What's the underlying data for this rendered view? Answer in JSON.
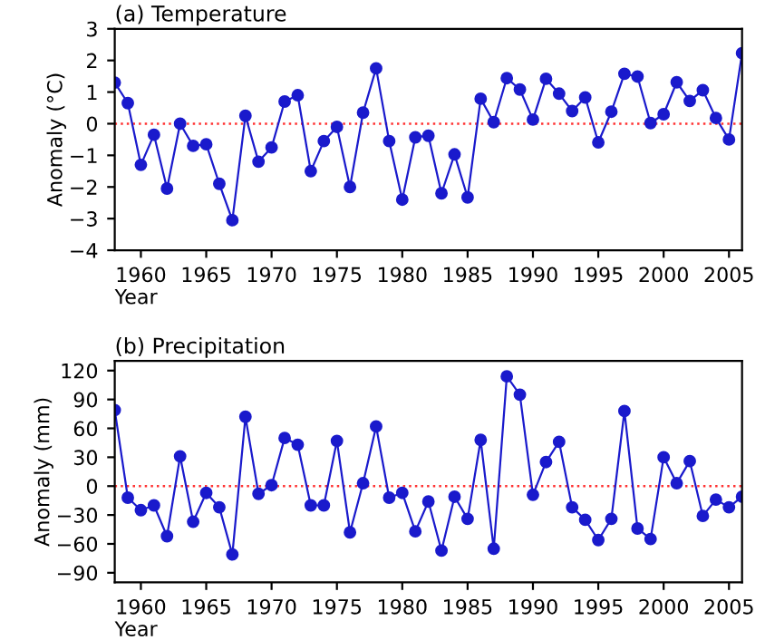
{
  "chart_data": [
    {
      "type": "line",
      "title": "(a) Temperature",
      "xlabel": "Year",
      "ylabel": "Anomaly (°C)",
      "x": [
        1958,
        1959,
        1960,
        1961,
        1962,
        1963,
        1964,
        1965,
        1966,
        1967,
        1968,
        1969,
        1970,
        1971,
        1972,
        1973,
        1974,
        1975,
        1976,
        1977,
        1978,
        1979,
        1980,
        1981,
        1982,
        1983,
        1984,
        1985,
        1986,
        1987,
        1988,
        1989,
        1990,
        1991,
        1992,
        1993,
        1994,
        1995,
        1996,
        1997,
        1998,
        1999,
        2000,
        2001,
        2002,
        2003,
        2004,
        2005,
        2006
      ],
      "series": [
        {
          "color": "#1a1acc",
          "values": [
            1.3,
            0.65,
            -1.3,
            -0.35,
            -2.05,
            0.0,
            -0.7,
            -0.65,
            -1.9,
            -3.05,
            0.25,
            -1.2,
            -0.75,
            0.7,
            0.9,
            -1.5,
            -0.55,
            -0.1,
            -2.0,
            0.35,
            1.75,
            -0.55,
            -2.4,
            -0.43,
            -0.38,
            -2.2,
            -0.97,
            -2.33,
            0.79,
            0.05,
            1.44,
            1.08,
            0.13,
            1.42,
            0.95,
            0.4,
            0.83,
            -0.59,
            0.38,
            1.58,
            1.49,
            0.02,
            0.3,
            1.31,
            0.72,
            1.06,
            0.18,
            -0.5,
            2.23
          ]
        }
      ],
      "xlim": [
        1958,
        2006
      ],
      "xticks": [
        1960,
        1965,
        1970,
        1975,
        1980,
        1985,
        1990,
        1995,
        2000,
        2005
      ],
      "ylim": [
        -4,
        3
      ],
      "yticks": [
        -4,
        -3,
        -2,
        -1,
        0,
        1,
        2,
        3
      ],
      "ref_lines": [
        {
          "axis": "y",
          "value": 0,
          "color": "#ff3333",
          "line_style": "dotted"
        }
      ],
      "marker": "circle",
      "grid": false,
      "legend": false
    },
    {
      "type": "line",
      "title": "(b) Precipitation",
      "xlabel": "Year",
      "ylabel": "Anomaly (mm)",
      "x": [
        1958,
        1959,
        1960,
        1961,
        1962,
        1963,
        1964,
        1965,
        1966,
        1967,
        1968,
        1969,
        1970,
        1971,
        1972,
        1973,
        1974,
        1975,
        1976,
        1977,
        1978,
        1979,
        1980,
        1981,
        1982,
        1983,
        1984,
        1985,
        1986,
        1987,
        1988,
        1989,
        1990,
        1991,
        1992,
        1993,
        1994,
        1995,
        1996,
        1997,
        1998,
        1999,
        2000,
        2001,
        2002,
        2003,
        2004,
        2005,
        2006
      ],
      "series": [
        {
          "color": "#1a1acc",
          "values": [
            79,
            -12,
            -25,
            -20,
            -52,
            31,
            -37,
            -7,
            -22,
            -71,
            72,
            -8,
            1,
            50,
            43,
            -20,
            -20,
            47,
            -48,
            3,
            62,
            -12,
            -7,
            -47,
            -16,
            -67,
            -11,
            -34,
            48,
            -65,
            114,
            95,
            -9,
            25,
            46,
            -22,
            -35,
            -56,
            -34,
            78,
            -44,
            -55,
            30,
            3,
            26,
            -31,
            -14,
            -22,
            -11
          ]
        }
      ],
      "xlim": [
        1958,
        2006
      ],
      "xticks": [
        1960,
        1965,
        1970,
        1975,
        1980,
        1985,
        1990,
        1995,
        2000,
        2005
      ],
      "ylim": [
        -100,
        130
      ],
      "yticks": [
        -90,
        -60,
        -30,
        0,
        30,
        60,
        90,
        120
      ],
      "ref_lines": [
        {
          "axis": "y",
          "value": 0,
          "color": "#ff3333",
          "line_style": "dotted"
        }
      ],
      "marker": "circle",
      "grid": false,
      "legend": false
    }
  ]
}
